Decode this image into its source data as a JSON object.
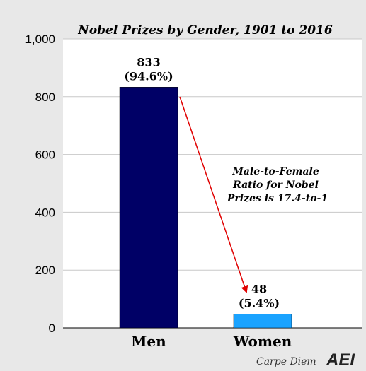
{
  "chart_data": {
    "type": "bar",
    "title": "Nobel Prizes by Gender, 1901 to 2016",
    "categories": [
      "Men",
      "Women"
    ],
    "values": [
      833,
      48
    ],
    "data_labels": [
      {
        "value": "833",
        "percent": "(94.6%)"
      },
      {
        "value": "48",
        "percent": "(5.4%)"
      }
    ],
    "ylim": [
      0,
      1000
    ],
    "yticks": [
      "0",
      "200",
      "400",
      "600",
      "800",
      "1,000"
    ],
    "xlabel": "",
    "ylabel": "",
    "grid": true,
    "bar_colors": [
      "#000066",
      "#1aa3ff"
    ],
    "annotation": {
      "lines": [
        "Male-to-Female",
        "Ratio for Nobel",
        "Prizes is 17.4-to-1"
      ],
      "arrow_color": "#e00000"
    }
  },
  "footer": {
    "credit": "Carpe Diem",
    "logo_text": "AEI"
  }
}
